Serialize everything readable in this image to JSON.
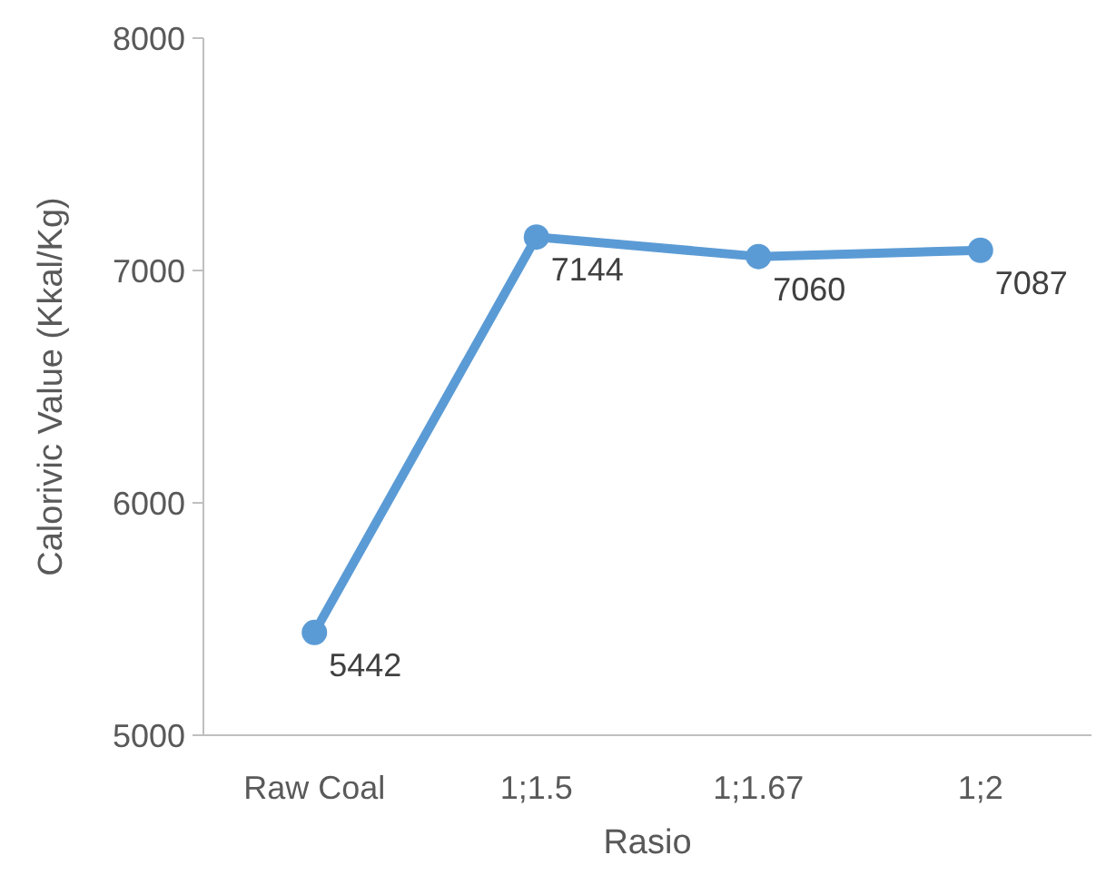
{
  "chart_data": {
    "type": "line",
    "xlabel": "Rasio",
    "ylabel": "Calorivic Value (Kkal/Kg)",
    "categories": [
      "Raw Coal",
      "1;1.5",
      "1;1.67",
      "1;2"
    ],
    "series": [
      {
        "color": "#5b9bd5",
        "values": [
          5442,
          7144,
          7060,
          7087
        ]
      }
    ],
    "ylim": [
      5000,
      8000
    ],
    "yticks": [
      5000,
      6000,
      7000,
      8000
    ],
    "grid": false,
    "marker": "circle",
    "line_style": "solid",
    "data_labels": true
  }
}
